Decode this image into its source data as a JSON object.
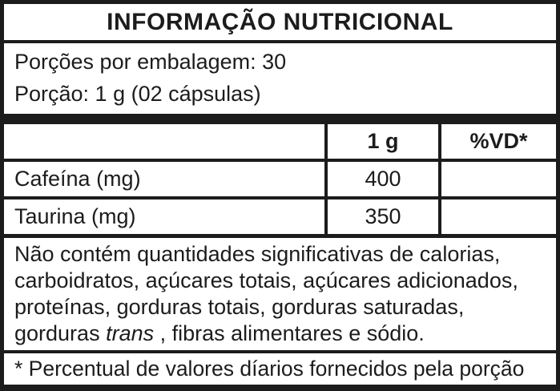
{
  "colors": {
    "border": "#1c1c1c",
    "text": "#1c1c1c",
    "background": "#ffffff"
  },
  "title": "INFORMAÇÃO NUTRICIONAL",
  "serving": {
    "servings_per_package": "Porções por embalagem: 30",
    "serving_size": "Porção: 1 g (02 cápsulas)"
  },
  "table": {
    "headers": [
      "",
      "1 g",
      "%VD*"
    ],
    "rows": [
      {
        "name": "Cafeína (mg)",
        "amount": "400",
        "vd": ""
      },
      {
        "name": "Taurina (mg)",
        "amount": "350",
        "vd": ""
      }
    ]
  },
  "note": {
    "line1": "Não contém quantidades significativas de calorias,",
    "line2": "carboidratos, açúcares totais, açúcares adicionados,",
    "line3": "proteínas, gorduras totais, gorduras saturadas,",
    "line4_before": "gorduras ",
    "line4_italic": "trans",
    "line4_after": " , fibras alimentares e sódio."
  },
  "footnote": "* Percentual de valores díarios fornecidos pela porção"
}
